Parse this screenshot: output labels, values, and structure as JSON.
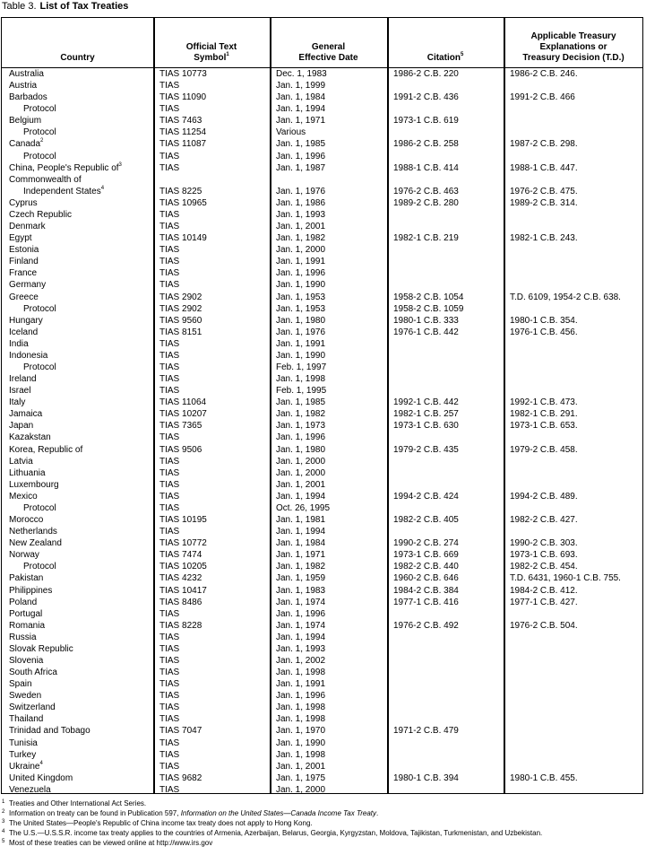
{
  "title": {
    "label": "Table 3.",
    "text": "List of Tax Treaties"
  },
  "columns": [
    {
      "lines": [
        "Country"
      ]
    },
    {
      "lines": [
        "Official Text",
        "Symbol"
      ],
      "sup": "1"
    },
    {
      "lines": [
        "General",
        "Effective Date"
      ]
    },
    {
      "lines": [
        "Citation"
      ],
      "sup": "5"
    },
    {
      "lines": [
        "Applicable Treasury",
        "Explanations or",
        "Treasury Decision (T.D.)"
      ]
    }
  ],
  "rows": [
    [
      "Australia",
      "TIAS 10773",
      "Dec. 1, 1983",
      "1986-2 C.B. 220",
      "1986-2 C.B. 246."
    ],
    [
      "Austria",
      "TIAS",
      "Jan. 1, 1999",
      "",
      ""
    ],
    [
      "Barbados",
      "TIAS 11090",
      "Jan. 1, 1984",
      "1991-2 C.B. 436",
      "1991-2 C.B. 466"
    ],
    [
      "Protocol",
      "TIAS",
      "Jan. 1, 1994",
      "",
      ""
    ],
    [
      "Belgium",
      "TIAS 7463",
      "Jan. 1, 1971",
      "1973-1 C.B. 619",
      ""
    ],
    [
      "Protocol",
      "TIAS 11254",
      "Various",
      "",
      ""
    ],
    [
      "Canada",
      "TIAS 11087",
      "Jan. 1, 1985",
      "1986-2 C.B. 258",
      "1987-2 C.B. 298."
    ],
    [
      "Protocol",
      "TIAS",
      "Jan. 1, 1996",
      "",
      ""
    ],
    [
      "China, People's Republic of",
      "TIAS",
      "Jan. 1, 1987",
      "1988-1 C.B. 414",
      "1988-1 C.B. 447."
    ],
    [
      "Commonwealth of",
      "",
      "",
      "",
      ""
    ],
    [
      "Independent States",
      "TIAS 8225",
      "Jan. 1, 1976",
      "1976-2 C.B. 463",
      "1976-2 C.B. 475."
    ],
    [
      "Cyprus",
      "TIAS 10965",
      "Jan. 1, 1986",
      "1989-2 C.B. 280",
      "1989-2 C.B. 314."
    ],
    [
      "Czech Republic",
      "TIAS",
      "Jan. 1, 1993",
      "",
      ""
    ],
    [
      "Denmark",
      "TIAS",
      "Jan. 1, 2001",
      "",
      ""
    ],
    [
      "Egypt",
      "TIAS 10149",
      "Jan. 1, 1982",
      "1982-1 C.B. 219",
      "1982-1 C.B. 243."
    ],
    [
      "Estonia",
      "TIAS",
      "Jan. 1, 2000",
      "",
      ""
    ],
    [
      "Finland",
      "TIAS",
      "Jan. 1, 1991",
      "",
      ""
    ],
    [
      "France",
      "TIAS",
      "Jan. 1, 1996",
      "",
      ""
    ],
    [
      "Germany",
      "TIAS",
      "Jan. 1, 1990",
      "",
      ""
    ],
    [
      "Greece",
      "TIAS 2902",
      "Jan. 1, 1953",
      "1958-2 C.B. 1054",
      "T.D. 6109, 1954-2 C.B. 638."
    ],
    [
      "Protocol",
      "TIAS 2902",
      "Jan. 1, 1953",
      "1958-2 C.B. 1059",
      ""
    ],
    [
      "Hungary",
      "TIAS 9560",
      "Jan. 1, 1980",
      "1980-1 C.B. 333",
      "1980-1 C.B. 354."
    ],
    [
      "Iceland",
      "TIAS 8151",
      "Jan. 1, 1976",
      "1976-1 C.B. 442",
      "1976-1 C.B. 456."
    ],
    [
      "India",
      "TIAS",
      "Jan. 1, 1991",
      "",
      ""
    ],
    [
      "Indonesia",
      "TIAS",
      "Jan. 1, 1990",
      "",
      ""
    ],
    [
      "Protocol",
      "TIAS",
      "Feb. 1, 1997",
      "",
      ""
    ],
    [
      "Ireland",
      "TIAS",
      "Jan. 1, 1998",
      "",
      ""
    ],
    [
      "Israel",
      "TIAS",
      "Feb. 1, 1995",
      "",
      ""
    ],
    [
      "Italy",
      "TIAS 11064",
      "Jan. 1, 1985",
      "1992-1 C.B. 442",
      "1992-1 C.B. 473."
    ],
    [
      "Jamaica",
      "TIAS 10207",
      "Jan. 1, 1982",
      "1982-1 C.B. 257",
      "1982-1 C.B. 291."
    ],
    [
      "Japan",
      "TIAS 7365",
      "Jan. 1, 1973",
      "1973-1 C.B. 630",
      "1973-1 C.B. 653."
    ],
    [
      "Kazakstan",
      "TIAS",
      "Jan. 1, 1996",
      "",
      ""
    ],
    [
      "Korea, Republic of",
      "TIAS 9506",
      "Jan. 1, 1980",
      "1979-2 C.B. 435",
      "1979-2 C.B. 458."
    ],
    [
      "Latvia",
      "TIAS",
      "Jan. 1, 2000",
      "",
      ""
    ],
    [
      "Lithuania",
      "TIAS",
      "Jan. 1, 2000",
      "",
      ""
    ],
    [
      "Luxembourg",
      "TIAS",
      "Jan. 1, 2001",
      "",
      ""
    ],
    [
      "Mexico",
      "TIAS",
      "Jan. 1, 1994",
      "1994-2 C.B. 424",
      "1994-2 C.B. 489."
    ],
    [
      "Protocol",
      "TIAS",
      "Oct. 26, 1995",
      "",
      ""
    ],
    [
      "Morocco",
      "TIAS 10195",
      "Jan. 1, 1981",
      "1982-2 C.B. 405",
      "1982-2 C.B. 427."
    ],
    [
      "Netherlands",
      "TIAS",
      "Jan. 1, 1994",
      "",
      ""
    ],
    [
      "New Zealand",
      "TIAS 10772",
      "Jan. 1, 1984",
      "1990-2 C.B. 274",
      "1990-2 C.B. 303."
    ],
    [
      "Norway",
      "TIAS 7474",
      "Jan. 1, 1971",
      "1973-1 C.B. 669",
      "1973-1 C.B. 693."
    ],
    [
      "Protocol",
      "TIAS 10205",
      "Jan. 1, 1982",
      "1982-2 C.B. 440",
      "1982-2 C.B. 454."
    ],
    [
      "Pakistan",
      "TIAS 4232",
      "Jan. 1, 1959",
      "1960-2 C.B. 646",
      "T.D. 6431, 1960-1 C.B. 755."
    ],
    [
      "Philippines",
      "TIAS 10417",
      "Jan. 1, 1983",
      "1984-2 C.B. 384",
      "1984-2 C.B. 412."
    ],
    [
      "Poland",
      "TIAS 8486",
      "Jan. 1, 1974",
      "1977-1 C.B. 416",
      "1977-1 C.B. 427."
    ],
    [
      "Portugal",
      "TIAS",
      "Jan. 1, 1996",
      "",
      ""
    ],
    [
      "Romania",
      "TIAS 8228",
      "Jan. 1, 1974",
      "1976-2 C.B. 492",
      "1976-2 C.B. 504."
    ],
    [
      "Russia",
      "TIAS",
      "Jan. 1, 1994",
      "",
      ""
    ],
    [
      "Slovak Republic",
      "TIAS",
      "Jan. 1, 1993",
      "",
      ""
    ],
    [
      "Slovenia",
      "TIAS",
      "Jan. 1, 2002",
      "",
      ""
    ],
    [
      "South Africa",
      "TIAS",
      "Jan. 1, 1998",
      "",
      ""
    ],
    [
      "Spain",
      "TIAS",
      "Jan. 1, 1991",
      "",
      ""
    ],
    [
      "Sweden",
      "TIAS",
      "Jan. 1, 1996",
      "",
      ""
    ],
    [
      "Switzerland",
      "TIAS",
      "Jan. 1, 1998",
      "",
      ""
    ],
    [
      "Thailand",
      "TIAS",
      "Jan. 1, 1998",
      "",
      ""
    ],
    [
      "Trinidad and Tobago",
      "TIAS 7047",
      "Jan. 1, 1970",
      "1971-2 C.B. 479",
      ""
    ],
    [
      "Tunisia",
      "TIAS",
      "Jan. 1, 1990",
      "",
      ""
    ],
    [
      "Turkey",
      "TIAS",
      "Jan. 1, 1998",
      "",
      ""
    ],
    [
      "Ukraine",
      "TIAS",
      "Jan. 1, 2001",
      "",
      ""
    ],
    [
      "United Kingdom",
      "TIAS 9682",
      "Jan. 1, 1975",
      "1980-1 C.B. 394",
      "1980-1 C.B. 455."
    ],
    [
      "Venezuela",
      "TIAS",
      "Jan. 1, 2000",
      "",
      ""
    ]
  ],
  "row_footnotes": {
    "Canada": "2",
    "China, People's Republic of": "3",
    "Independent States": "4",
    "Ukraine": "4"
  },
  "indented": [
    "Protocol",
    "Independent States"
  ],
  "footnotes": [
    {
      "n": "1",
      "text": "Treaties and Other International Act Series."
    },
    {
      "n": "2",
      "text": "Information on treaty can be found in Publication 597, ",
      "italic": "Information on the United States—Canada Income Tax Treaty",
      "after": "."
    },
    {
      "n": "3",
      "text": "The United States—People's Republic of China income tax treaty does not apply to Hong Kong."
    },
    {
      "n": "4",
      "text": "The U.S.—U.S.S.R. income tax treaty applies to the countries of Armenia, Azerbaijan, Belarus, Georgia, Kyrgyzstan, Moldova, Tajikistan, Turkmenistan, and Uzbekistan."
    },
    {
      "n": "5",
      "text": "Most of these treaties can be viewed online at http://www.irs.gov"
    }
  ]
}
